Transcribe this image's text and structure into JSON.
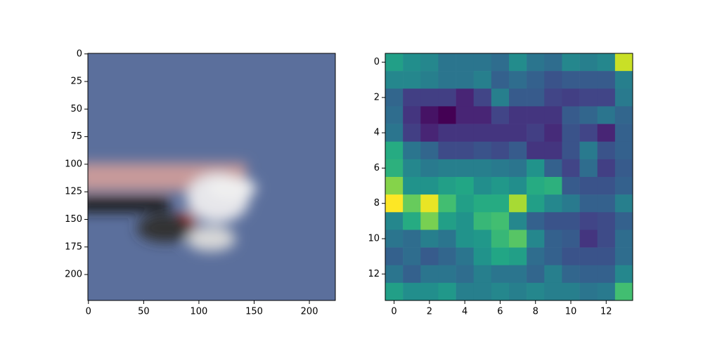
{
  "chart_data": [
    {
      "type": "image",
      "xlim": [
        -0.5,
        223.5
      ],
      "ylim": [
        223.5,
        -0.5
      ],
      "xticks": [
        0,
        50,
        100,
        150,
        200
      ],
      "yticks": [
        0,
        25,
        50,
        75,
        100,
        125,
        150,
        175,
        200
      ]
    },
    {
      "type": "heatmap",
      "cmap": "viridis",
      "xlim": [
        -0.5,
        13.5
      ],
      "ylim": [
        13.5,
        -0.5
      ],
      "xticks": [
        0,
        2,
        4,
        6,
        8,
        10,
        12
      ],
      "yticks": [
        0,
        2,
        4,
        6,
        8,
        10,
        12
      ],
      "values": [
        [
          0.55,
          0.48,
          0.45,
          0.38,
          0.38,
          0.38,
          0.35,
          0.47,
          0.38,
          0.35,
          0.45,
          0.42,
          0.45,
          0.9
        ],
        [
          0.45,
          0.45,
          0.42,
          0.38,
          0.38,
          0.42,
          0.3,
          0.35,
          0.3,
          0.25,
          0.28,
          0.28,
          0.28,
          0.42
        ],
        [
          0.32,
          0.18,
          0.18,
          0.18,
          0.1,
          0.2,
          0.42,
          0.28,
          0.28,
          0.2,
          0.18,
          0.2,
          0.2,
          0.4
        ],
        [
          0.35,
          0.15,
          0.05,
          0.0,
          0.1,
          0.1,
          0.2,
          0.15,
          0.15,
          0.15,
          0.28,
          0.32,
          0.38,
          0.32
        ],
        [
          0.38,
          0.18,
          0.1,
          0.15,
          0.15,
          0.15,
          0.15,
          0.15,
          0.18,
          0.12,
          0.25,
          0.2,
          0.1,
          0.3
        ],
        [
          0.6,
          0.38,
          0.32,
          0.22,
          0.22,
          0.25,
          0.22,
          0.28,
          0.15,
          0.15,
          0.25,
          0.4,
          0.25,
          0.3
        ],
        [
          0.62,
          0.45,
          0.4,
          0.42,
          0.42,
          0.42,
          0.4,
          0.38,
          0.5,
          0.3,
          0.2,
          0.35,
          0.18,
          0.28
        ],
        [
          0.8,
          0.5,
          0.5,
          0.55,
          0.58,
          0.48,
          0.52,
          0.48,
          0.6,
          0.62,
          0.28,
          0.25,
          0.25,
          0.3
        ],
        [
          0.98,
          0.75,
          0.95,
          0.68,
          0.55,
          0.6,
          0.6,
          0.85,
          0.55,
          0.45,
          0.4,
          0.3,
          0.3,
          0.42
        ],
        [
          0.45,
          0.6,
          0.78,
          0.55,
          0.5,
          0.65,
          0.68,
          0.45,
          0.3,
          0.25,
          0.25,
          0.2,
          0.22,
          0.3
        ],
        [
          0.38,
          0.35,
          0.42,
          0.38,
          0.5,
          0.52,
          0.65,
          0.72,
          0.45,
          0.3,
          0.28,
          0.15,
          0.22,
          0.35
        ],
        [
          0.3,
          0.35,
          0.28,
          0.32,
          0.38,
          0.5,
          0.58,
          0.55,
          0.35,
          0.3,
          0.25,
          0.25,
          0.25,
          0.35
        ],
        [
          0.38,
          0.3,
          0.38,
          0.38,
          0.35,
          0.42,
          0.38,
          0.38,
          0.32,
          0.42,
          0.32,
          0.3,
          0.3,
          0.45
        ],
        [
          0.55,
          0.48,
          0.48,
          0.52,
          0.42,
          0.42,
          0.45,
          0.42,
          0.45,
          0.42,
          0.42,
          0.38,
          0.4,
          0.68
        ]
      ]
    }
  ]
}
